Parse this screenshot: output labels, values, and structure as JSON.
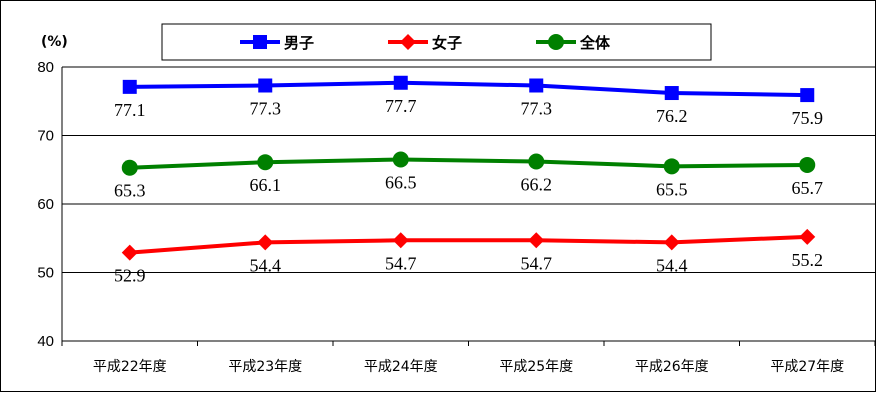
{
  "chart_data": {
    "type": "line",
    "unit_label": "(%)",
    "categories": [
      "平成22年度",
      "平成23年度",
      "平成24年度",
      "平成25年度",
      "平成26年度",
      "平成27年度"
    ],
    "y_ticks": [
      "80",
      "70",
      "60",
      "50",
      "40"
    ],
    "ylim": [
      40,
      80
    ],
    "grid": true,
    "legend_position": "top",
    "series": [
      {
        "name": "男子",
        "color": "#0000ff",
        "marker": "square",
        "values": [
          77.1,
          77.3,
          77.7,
          77.3,
          76.2,
          75.9
        ],
        "labels": [
          "77.1",
          "77.3",
          "77.7",
          "77.3",
          "76.2",
          "75.9"
        ]
      },
      {
        "name": "女子",
        "color": "#ff0000",
        "marker": "diamond",
        "values": [
          52.9,
          54.4,
          54.7,
          54.7,
          54.4,
          55.2
        ],
        "labels": [
          "52.9",
          "54.4",
          "54.7",
          "54.7",
          "54.4",
          "55.2"
        ]
      },
      {
        "name": "全体",
        "color": "#008000",
        "marker": "circle",
        "values": [
          65.3,
          66.1,
          66.5,
          66.2,
          65.5,
          65.7
        ],
        "labels": [
          "65.3",
          "66.1",
          "66.5",
          "66.2",
          "65.5",
          "65.7"
        ]
      }
    ]
  }
}
